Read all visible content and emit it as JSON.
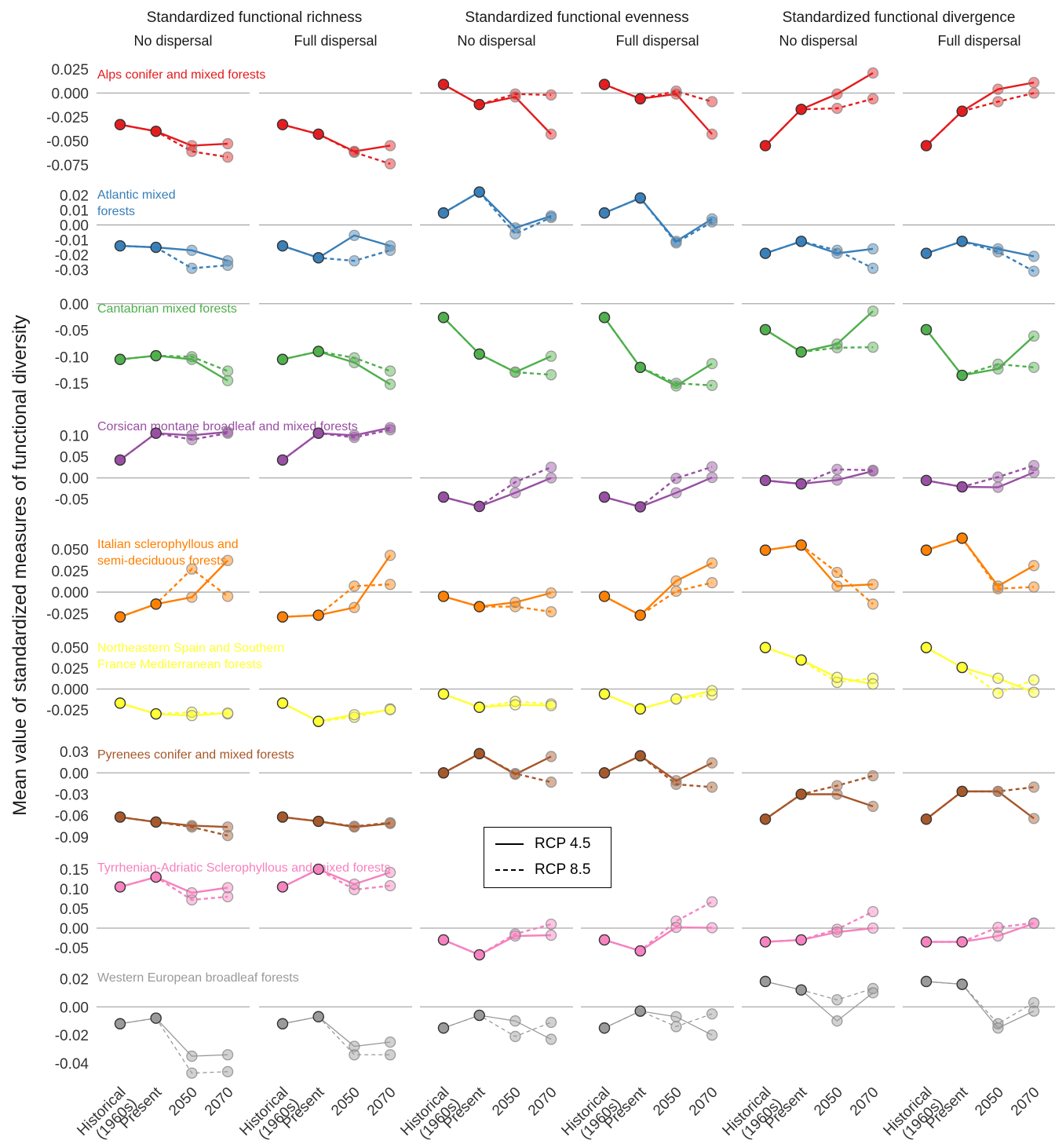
{
  "chart_data": {
    "type": "line",
    "ylabel": "Mean value of standardized measures of functional diversity",
    "x_categories": [
      "Historical\n(1960s)",
      "Present",
      "2050",
      "2070"
    ],
    "groups": [
      {
        "title": "Standardized functional richness",
        "panels": [
          "No dispersal",
          "Full dispersal"
        ]
      },
      {
        "title": "Standardized functional evenness",
        "panels": [
          "No dispersal",
          "Full dispersal"
        ]
      },
      {
        "title": "Standardized functional divergence",
        "panels": [
          "No dispersal",
          "Full dispersal"
        ]
      }
    ],
    "legend": {
      "items": [
        "RCP 4.5",
        "RCP 8.5"
      ],
      "styles": [
        "solid",
        "dashed"
      ]
    },
    "regions": [
      {
        "name": "Alps conifer and mixed forests",
        "color": "#e41a1c",
        "ylim": [
          -0.085,
          0.03
        ],
        "yticks": [
          0.025,
          0.0,
          -0.025,
          -0.05,
          -0.075
        ],
        "ytick_labels": [
          "0.025",
          "0.000",
          "-0.025",
          "-0.050",
          "-0.075"
        ],
        "panels": [
          {
            "rcp45": [
              -0.033,
              -0.04,
              -0.055,
              -0.053
            ],
            "rcp85": [
              -0.033,
              -0.04,
              -0.061,
              -0.067
            ]
          },
          {
            "rcp45": [
              -0.033,
              -0.043,
              -0.061,
              -0.055
            ],
            "rcp85": [
              -0.033,
              -0.043,
              -0.062,
              -0.074
            ]
          },
          {
            "rcp45": [
              0.009,
              -0.012,
              -0.004,
              -0.043
            ],
            "rcp85": [
              0.009,
              -0.012,
              -0.001,
              -0.002
            ]
          },
          {
            "rcp45": [
              0.009,
              -0.006,
              -0.001,
              -0.043
            ],
            "rcp85": [
              0.009,
              -0.006,
              0.002,
              -0.009
            ]
          },
          {
            "rcp45": [
              -0.055,
              -0.017,
              -0.001,
              0.021
            ],
            "rcp85": [
              -0.055,
              -0.017,
              -0.016,
              -0.006
            ]
          },
          {
            "rcp45": [
              -0.055,
              -0.019,
              0.004,
              0.011
            ],
            "rcp85": [
              -0.055,
              -0.019,
              -0.009,
              0.0
            ]
          }
        ]
      },
      {
        "name": "Atlantic mixed\nforests",
        "color": "#377eb8",
        "ylim": [
          -0.036,
          0.027
        ],
        "yticks": [
          0.02,
          0.01,
          0.0,
          -0.01,
          -0.02,
          -0.03
        ],
        "ytick_labels": [
          "0.02",
          "0.01",
          "0.00",
          "-0.01",
          "-0.02",
          "-0.03"
        ],
        "panels": [
          {
            "rcp45": [
              -0.014,
              -0.015,
              -0.017,
              -0.024
            ],
            "rcp85": [
              -0.014,
              -0.015,
              -0.029,
              -0.027
            ]
          },
          {
            "rcp45": [
              -0.014,
              -0.022,
              -0.007,
              -0.014
            ],
            "rcp85": [
              -0.014,
              -0.022,
              -0.024,
              -0.017
            ]
          },
          {
            "rcp45": [
              0.008,
              0.022,
              -0.002,
              0.006
            ],
            "rcp85": [
              0.008,
              0.022,
              -0.006,
              0.005
            ]
          },
          {
            "rcp45": [
              0.008,
              0.018,
              -0.011,
              0.004
            ],
            "rcp85": [
              0.008,
              0.018,
              -0.012,
              0.002
            ]
          },
          {
            "rcp45": [
              -0.019,
              -0.011,
              -0.019,
              -0.016
            ],
            "rcp85": [
              -0.019,
              -0.011,
              -0.017,
              -0.029
            ]
          },
          {
            "rcp45": [
              -0.019,
              -0.011,
              -0.016,
              -0.021
            ],
            "rcp85": [
              -0.019,
              -0.011,
              -0.018,
              -0.031
            ]
          }
        ]
      },
      {
        "name": "Cantabrian mixed forests",
        "color": "#4daf4a",
        "ylim": [
          -0.175,
          0.01
        ],
        "yticks": [
          0.0,
          -0.05,
          -0.1,
          -0.15
        ],
        "ytick_labels": [
          "0.00",
          "-0.05",
          "-0.10",
          "-0.15"
        ],
        "panels": [
          {
            "rcp45": [
              -0.105,
              -0.098,
              -0.105,
              -0.145
            ],
            "rcp85": [
              -0.105,
              -0.098,
              -0.1,
              -0.127
            ]
          },
          {
            "rcp45": [
              -0.105,
              -0.09,
              -0.111,
              -0.152
            ],
            "rcp85": [
              -0.105,
              -0.09,
              -0.102,
              -0.127
            ]
          },
          {
            "rcp45": [
              -0.026,
              -0.095,
              -0.129,
              -0.099
            ],
            "rcp85": [
              -0.026,
              -0.095,
              -0.129,
              -0.134
            ]
          },
          {
            "rcp45": [
              -0.026,
              -0.12,
              -0.155,
              -0.113
            ],
            "rcp85": [
              -0.026,
              -0.12,
              -0.15,
              -0.154
            ]
          },
          {
            "rcp45": [
              -0.049,
              -0.091,
              -0.076,
              -0.014
            ],
            "rcp85": [
              -0.049,
              -0.091,
              -0.083,
              -0.082
            ]
          },
          {
            "rcp45": [
              -0.049,
              -0.135,
              -0.123,
              -0.061
            ],
            "rcp85": [
              -0.049,
              -0.135,
              -0.114,
              -0.12
            ]
          }
        ]
      },
      {
        "name": "Corsican montane broadleaf and mixed forests",
        "color": "#984ea3",
        "ylim": [
          -0.08,
          0.145
        ],
        "yticks": [
          0.1,
          0.05,
          0.0,
          -0.05
        ],
        "ytick_labels": [
          "0.10",
          "0.05",
          "0.00",
          "-0.05"
        ],
        "panels": [
          {
            "rcp45": [
              0.042,
              0.105,
              0.1,
              0.108
            ],
            "rcp85": [
              0.042,
              0.105,
              0.09,
              0.105
            ]
          },
          {
            "rcp45": [
              0.042,
              0.105,
              0.1,
              0.118
            ],
            "rcp85": [
              0.042,
              0.105,
              0.095,
              0.113
            ]
          },
          {
            "rcp45": [
              -0.045,
              -0.067,
              -0.035,
              0.0
            ],
            "rcp85": [
              -0.045,
              -0.067,
              -0.01,
              0.025
            ]
          },
          {
            "rcp45": [
              -0.045,
              -0.068,
              -0.035,
              0.001
            ],
            "rcp85": [
              -0.045,
              -0.068,
              -0.001,
              0.026
            ]
          },
          {
            "rcp45": [
              -0.006,
              -0.014,
              -0.005,
              0.016
            ],
            "rcp85": [
              -0.006,
              -0.014,
              0.02,
              0.018
            ]
          },
          {
            "rcp45": [
              -0.006,
              -0.021,
              -0.022,
              0.013
            ],
            "rcp85": [
              -0.006,
              -0.021,
              0.002,
              0.029
            ]
          }
        ]
      },
      {
        "name": "Italian sclerophyllous and\nsemi-deciduous forests",
        "color": "#ff7f00",
        "ylim": [
          -0.033,
          0.068
        ],
        "yticks": [
          0.05,
          0.025,
          0.0,
          -0.025
        ],
        "ytick_labels": [
          "0.050",
          "0.025",
          "0.000",
          "-0.025"
        ],
        "panels": [
          {
            "rcp45": [
              -0.029,
              -0.014,
              -0.006,
              0.037
            ],
            "rcp85": [
              -0.029,
              -0.014,
              0.027,
              -0.005
            ]
          },
          {
            "rcp45": [
              -0.029,
              -0.027,
              -0.018,
              0.043
            ],
            "rcp85": [
              -0.029,
              -0.027,
              0.007,
              0.009
            ]
          },
          {
            "rcp45": [
              -0.005,
              -0.017,
              -0.012,
              -0.001
            ],
            "rcp85": [
              -0.005,
              -0.017,
              -0.017,
              -0.023
            ]
          },
          {
            "rcp45": [
              -0.005,
              -0.027,
              0.013,
              0.034
            ],
            "rcp85": [
              -0.005,
              -0.027,
              0.001,
              0.011
            ]
          },
          {
            "rcp45": [
              0.049,
              0.055,
              0.007,
              0.009
            ],
            "rcp85": [
              0.049,
              0.055,
              0.023,
              -0.014
            ]
          },
          {
            "rcp45": [
              0.049,
              0.063,
              0.007,
              0.031
            ],
            "rcp85": [
              0.049,
              0.063,
              0.004,
              0.006
            ]
          }
        ]
      },
      {
        "name": "Northeastern Spain and Southern\nFrance Mediterranean forests",
        "color": "#ffff33",
        "ylim": [
          -0.045,
          0.062
        ],
        "yticks": [
          0.05,
          0.025,
          0.0,
          -0.025
        ],
        "ytick_labels": [
          "0.050",
          "0.025",
          "0.000",
          "-0.025"
        ],
        "panels": [
          {
            "rcp45": [
              -0.017,
              -0.03,
              -0.032,
              -0.029
            ],
            "rcp85": [
              -0.017,
              -0.03,
              -0.028,
              -0.03
            ]
          },
          {
            "rcp45": [
              -0.017,
              -0.039,
              -0.031,
              -0.025
            ],
            "rcp85": [
              -0.017,
              -0.039,
              -0.034,
              -0.024
            ]
          },
          {
            "rcp45": [
              -0.006,
              -0.022,
              -0.019,
              -0.02
            ],
            "rcp85": [
              -0.006,
              -0.022,
              -0.015,
              -0.018
            ]
          },
          {
            "rcp45": [
              -0.006,
              -0.024,
              -0.012,
              -0.002
            ],
            "rcp85": [
              -0.006,
              -0.024,
              -0.012,
              -0.007
            ]
          },
          {
            "rcp45": [
              0.05,
              0.035,
              0.014,
              0.006
            ],
            "rcp85": [
              0.05,
              0.035,
              0.008,
              0.013
            ]
          },
          {
            "rcp45": [
              0.05,
              0.026,
              0.013,
              -0.004
            ],
            "rcp85": [
              0.05,
              0.026,
              -0.005,
              0.011
            ]
          }
        ]
      },
      {
        "name": "Pyrenees conifer and mixed forests",
        "color": "#a65628",
        "ylim": [
          -0.1,
          0.04
        ],
        "yticks": [
          0.03,
          0.0,
          -0.03,
          -0.06,
          -0.09
        ],
        "ytick_labels": [
          "0.03",
          "0.00",
          "-0.03",
          "-0.06",
          "-0.09"
        ],
        "panels": [
          {
            "rcp45": [
              -0.062,
              -0.069,
              -0.074,
              -0.076
            ],
            "rcp85": [
              -0.062,
              -0.069,
              -0.076,
              -0.088
            ]
          },
          {
            "rcp45": [
              -0.062,
              -0.068,
              -0.076,
              -0.071
            ],
            "rcp85": [
              -0.062,
              -0.068,
              -0.075,
              -0.07
            ]
          },
          {
            "rcp45": [
              0.0,
              0.027,
              -0.002,
              0.023
            ],
            "rcp85": [
              0.0,
              0.027,
              -0.001,
              -0.013
            ]
          },
          {
            "rcp45": [
              0.0,
              0.024,
              -0.011,
              0.014
            ],
            "rcp85": [
              0.0,
              0.024,
              -0.016,
              -0.02
            ]
          },
          {
            "rcp45": [
              -0.065,
              -0.03,
              -0.03,
              -0.047
            ],
            "rcp85": [
              -0.065,
              -0.03,
              -0.018,
              -0.004
            ]
          },
          {
            "rcp45": [
              -0.065,
              -0.026,
              -0.026,
              -0.064
            ],
            "rcp85": [
              -0.065,
              -0.026,
              -0.026,
              -0.02
            ]
          }
        ]
      },
      {
        "name": "Tyrrhenian-Adriatic Sclerophyllous and mixed forests",
        "color": "#f781bf",
        "ylim": [
          -0.08,
          0.18
        ],
        "yticks": [
          0.15,
          0.1,
          0.05,
          0.0,
          -0.05
        ],
        "ytick_labels": [
          "0.15",
          "0.10",
          "0.05",
          "0.00",
          "-0.05"
        ],
        "panels": [
          {
            "rcp45": [
              0.105,
              0.13,
              0.09,
              0.103
            ],
            "rcp85": [
              0.105,
              0.13,
              0.072,
              0.08
            ]
          },
          {
            "rcp45": [
              0.105,
              0.15,
              0.112,
              0.142
            ],
            "rcp85": [
              0.105,
              0.15,
              0.098,
              0.108
            ]
          },
          {
            "rcp45": [
              -0.03,
              -0.068,
              -0.02,
              -0.018
            ],
            "rcp85": [
              -0.03,
              -0.068,
              -0.015,
              0.01
            ]
          },
          {
            "rcp45": [
              -0.03,
              -0.058,
              0.002,
              0.001
            ],
            "rcp85": [
              -0.03,
              -0.058,
              0.018,
              0.067
            ]
          },
          {
            "rcp45": [
              -0.035,
              -0.03,
              -0.01,
              0.0
            ],
            "rcp85": [
              -0.035,
              -0.03,
              -0.003,
              0.042
            ]
          },
          {
            "rcp45": [
              -0.035,
              -0.035,
              -0.02,
              0.012
            ],
            "rcp85": [
              -0.035,
              -0.035,
              0.002,
              0.013
            ]
          }
        ]
      },
      {
        "name": "Western European broadleaf forests",
        "color": "#999999",
        "ylim": [
          -0.05,
          0.028
        ],
        "yticks": [
          0.02,
          0.0,
          -0.02,
          -0.04
        ],
        "ytick_labels": [
          "0.02",
          "0.00",
          "-0.02",
          "-0.04"
        ],
        "panels": [
          {
            "rcp45": [
              -0.012,
              -0.008,
              -0.035,
              -0.034
            ],
            "rcp85": [
              -0.012,
              -0.008,
              -0.047,
              -0.046
            ]
          },
          {
            "rcp45": [
              -0.012,
              -0.007,
              -0.028,
              -0.025
            ],
            "rcp85": [
              -0.012,
              -0.007,
              -0.034,
              -0.034
            ]
          },
          {
            "rcp45": [
              -0.015,
              -0.006,
              -0.01,
              -0.023
            ],
            "rcp85": [
              -0.015,
              -0.006,
              -0.021,
              -0.011
            ]
          },
          {
            "rcp45": [
              -0.015,
              -0.003,
              -0.007,
              -0.02
            ],
            "rcp85": [
              -0.015,
              -0.003,
              -0.014,
              -0.005
            ]
          },
          {
            "rcp45": [
              0.018,
              0.012,
              -0.01,
              0.01
            ],
            "rcp85": [
              0.018,
              0.012,
              0.005,
              0.013
            ]
          },
          {
            "rcp45": [
              0.018,
              0.016,
              -0.015,
              -0.003
            ],
            "rcp85": [
              0.018,
              0.016,
              -0.012,
              0.003
            ]
          }
        ]
      }
    ]
  }
}
